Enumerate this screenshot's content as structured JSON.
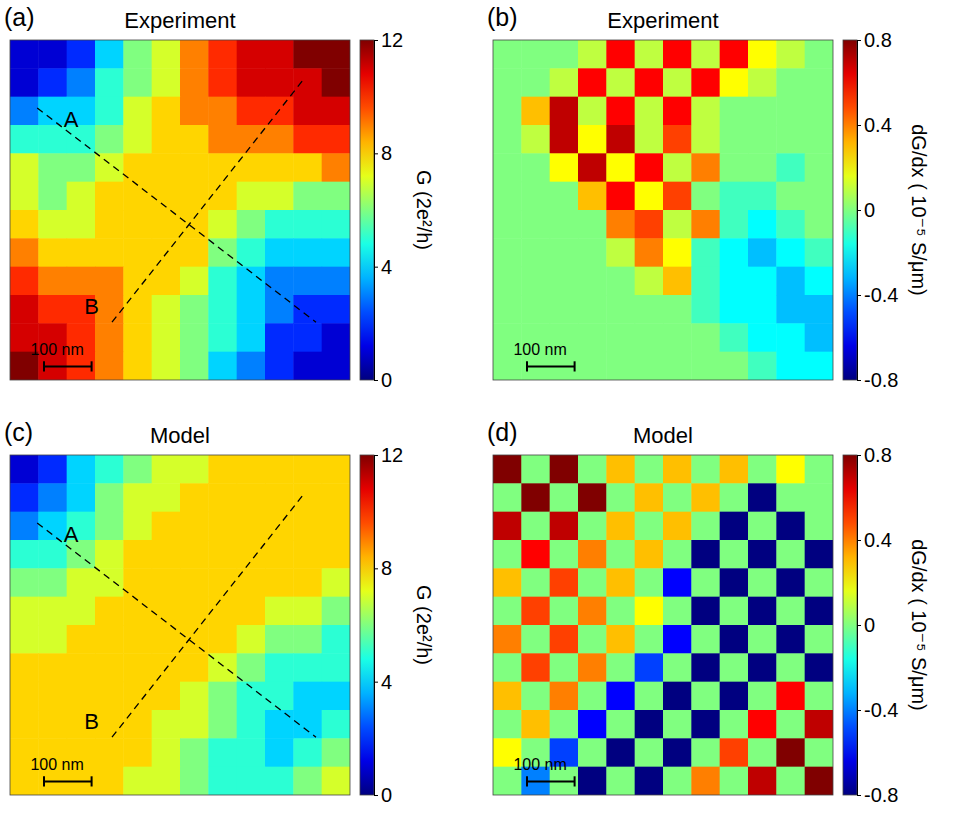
{
  "chart_data": [
    {
      "type": "heatmap",
      "panel_label": "(a)",
      "title": "Experiment",
      "tick_labels": false,
      "colorbar": {
        "label": "G (2e²/h)",
        "range": [
          0,
          12
        ],
        "ticks": [
          0,
          4,
          8,
          12
        ]
      },
      "annotations": [
        {
          "text": "A"
        },
        {
          "text": "B"
        }
      ],
      "scale_bar": "100 nm",
      "cells": [
        [
          1,
          1,
          2,
          4,
          6,
          7,
          9,
          10,
          11,
          11,
          12,
          12
        ],
        [
          1,
          2,
          3,
          5,
          6,
          7,
          9,
          10,
          11,
          11,
          11,
          12
        ],
        [
          3,
          4,
          4,
          5,
          7,
          8,
          9,
          9,
          10,
          10,
          11,
          11
        ],
        [
          5,
          5,
          5,
          6,
          7,
          8,
          8,
          9,
          9,
          9,
          10,
          10
        ],
        [
          7,
          6,
          6,
          7,
          8,
          8,
          8,
          8,
          8,
          8,
          8,
          9
        ],
        [
          7,
          6,
          7,
          8,
          8,
          8,
          8,
          8,
          7,
          7,
          6,
          6
        ],
        [
          8,
          7,
          7,
          8,
          8,
          8,
          8,
          7,
          6,
          5,
          5,
          5
        ],
        [
          9,
          8,
          8,
          8,
          8,
          8,
          8,
          6,
          5,
          4,
          4,
          4
        ],
        [
          10,
          9,
          9,
          9,
          8,
          8,
          7,
          5,
          4,
          3,
          3,
          3
        ],
        [
          11,
          10,
          10,
          9,
          8,
          7,
          6,
          5,
          4,
          3,
          2,
          2
        ],
        [
          11,
          11,
          10,
          9,
          8,
          7,
          6,
          5,
          4,
          2,
          2,
          1
        ],
        [
          12,
          11,
          10,
          9,
          8,
          7,
          6,
          4,
          3,
          2,
          1,
          1
        ]
      ]
    },
    {
      "type": "heatmap",
      "panel_label": "(b)",
      "title": "Experiment",
      "tick_labels": false,
      "colorbar": {
        "label": "dG/dx ( 10⁻⁵ S/μm)",
        "range": [
          -0.8,
          0.8
        ],
        "ticks": [
          -0.8,
          -0.4,
          0,
          0.4,
          0.8
        ]
      },
      "scale_bar": "100 nm",
      "cells": [
        [
          0,
          0,
          0,
          0.1,
          0.6,
          0.1,
          0.6,
          0.1,
          0.6,
          0.2,
          0.1,
          0
        ],
        [
          0,
          0,
          0.1,
          0.6,
          0.1,
          0.6,
          0.1,
          0.6,
          0.2,
          0.1,
          0,
          0
        ],
        [
          0,
          0.3,
          0.7,
          0.1,
          0.6,
          0.1,
          0.6,
          0.1,
          0,
          0,
          0,
          0
        ],
        [
          0,
          0.1,
          0.7,
          0.2,
          0.7,
          0.1,
          0.5,
          0.1,
          0,
          0,
          0,
          0
        ],
        [
          0,
          0,
          0.2,
          0.7,
          0.2,
          0.6,
          0.1,
          0.4,
          0,
          0,
          -0.1,
          0
        ],
        [
          0,
          0,
          0,
          0.3,
          0.6,
          0.2,
          0.5,
          0,
          -0.1,
          -0.1,
          0,
          0
        ],
        [
          0,
          0,
          0,
          0,
          0.4,
          0.5,
          0.1,
          0.4,
          -0.1,
          -0.2,
          -0.1,
          0
        ],
        [
          0,
          0,
          0,
          0,
          0.1,
          0.4,
          0.2,
          -0.1,
          -0.2,
          -0.3,
          -0.2,
          -0.1
        ],
        [
          0,
          0,
          0,
          0,
          0,
          0.1,
          0.3,
          -0.1,
          -0.2,
          -0.2,
          -0.3,
          -0.2
        ],
        [
          0,
          0,
          0,
          0,
          0,
          0,
          0,
          -0.1,
          -0.2,
          -0.2,
          -0.3,
          -0.3
        ],
        [
          0,
          0,
          0,
          0,
          0,
          0,
          0,
          0,
          -0.1,
          -0.2,
          -0.2,
          -0.3
        ],
        [
          0,
          0,
          0,
          0,
          0,
          0,
          0,
          0,
          0,
          -0.1,
          -0.2,
          -0.2
        ]
      ]
    },
    {
      "type": "heatmap",
      "panel_label": "(c)",
      "title": "Model",
      "tick_labels": false,
      "colorbar": {
        "label": "G (2e²/h)",
        "range": [
          0,
          12
        ],
        "ticks": [
          0,
          4,
          8,
          12
        ]
      },
      "annotations": [
        {
          "text": "A"
        },
        {
          "text": "B"
        }
      ],
      "scale_bar": "100 nm",
      "cells": [
        [
          1,
          2,
          4,
          5,
          6,
          7,
          7,
          8,
          8,
          8,
          8,
          8
        ],
        [
          2,
          3,
          4,
          6,
          7,
          7,
          8,
          8,
          8,
          8,
          8,
          8
        ],
        [
          3,
          4,
          5,
          6,
          7,
          8,
          8,
          8,
          8,
          8,
          8,
          8
        ],
        [
          5,
          5,
          6,
          7,
          8,
          8,
          8,
          8,
          8,
          8,
          8,
          8
        ],
        [
          6,
          6,
          7,
          7,
          8,
          8,
          8,
          8,
          8,
          8,
          8,
          7
        ],
        [
          7,
          7,
          7,
          8,
          8,
          8,
          8,
          8,
          8,
          7,
          7,
          6
        ],
        [
          7,
          7,
          8,
          8,
          8,
          8,
          8,
          8,
          7,
          6,
          6,
          5
        ],
        [
          8,
          8,
          8,
          8,
          8,
          8,
          8,
          7,
          6,
          5,
          5,
          5
        ],
        [
          8,
          8,
          8,
          8,
          8,
          8,
          7,
          6,
          5,
          5,
          4,
          4
        ],
        [
          8,
          8,
          8,
          8,
          8,
          7,
          7,
          6,
          5,
          4,
          4,
          5
        ],
        [
          8,
          8,
          8,
          8,
          8,
          7,
          6,
          5,
          5,
          4,
          5,
          6
        ],
        [
          8,
          8,
          8,
          8,
          7,
          7,
          6,
          5,
          5,
          5,
          6,
          7
        ]
      ]
    },
    {
      "type": "heatmap",
      "panel_label": "(d)",
      "title": "Model",
      "tick_labels": false,
      "colorbar": {
        "label": "dG/dx ( 10⁻⁵ S/μm)",
        "range": [
          -0.8,
          0.8
        ],
        "ticks": [
          -0.8,
          -0.4,
          0,
          0.4,
          0.8
        ]
      },
      "scale_bar": "100 nm",
      "cells": [
        [
          0.8,
          0,
          0.8,
          0,
          0.3,
          0,
          0.3,
          0,
          0.3,
          0,
          0.2,
          0
        ],
        [
          0,
          0.8,
          0,
          0.8,
          0,
          0.3,
          0,
          0.3,
          0,
          -0.8,
          0,
          0
        ],
        [
          0.7,
          0,
          0.7,
          0,
          0.3,
          0,
          0.3,
          0,
          -0.8,
          0,
          -0.8,
          0
        ],
        [
          0,
          0.6,
          0,
          0.4,
          0,
          0.3,
          0,
          -0.8,
          0,
          -0.8,
          0,
          -0.8
        ],
        [
          0.3,
          0,
          0.5,
          0,
          0.3,
          0,
          -0.6,
          0,
          -0.8,
          0,
          -0.8,
          0
        ],
        [
          0,
          0.5,
          0,
          0.4,
          0,
          0.2,
          0,
          -0.8,
          0,
          -0.8,
          0,
          -0.8
        ],
        [
          0.4,
          0,
          0.5,
          0,
          0.3,
          0,
          -0.6,
          0,
          -0.8,
          0,
          -0.8,
          0
        ],
        [
          0,
          0.5,
          0,
          0.4,
          0,
          -0.5,
          0,
          -0.8,
          0,
          -0.8,
          0,
          -0.8
        ],
        [
          0.3,
          0,
          0.4,
          0,
          -0.6,
          0,
          -0.8,
          0,
          -0.8,
          0,
          0.6,
          0
        ],
        [
          0,
          0.3,
          0,
          -0.6,
          0,
          -0.8,
          0,
          -0.8,
          0,
          0.6,
          0,
          0.7
        ],
        [
          0.2,
          0,
          -0.5,
          0,
          -0.8,
          0,
          -0.8,
          0,
          0.5,
          0,
          0.8,
          0
        ],
        [
          0,
          -0.4,
          0,
          -0.8,
          0,
          -0.8,
          0,
          0.4,
          0,
          0.7,
          0,
          0.8
        ]
      ]
    }
  ]
}
